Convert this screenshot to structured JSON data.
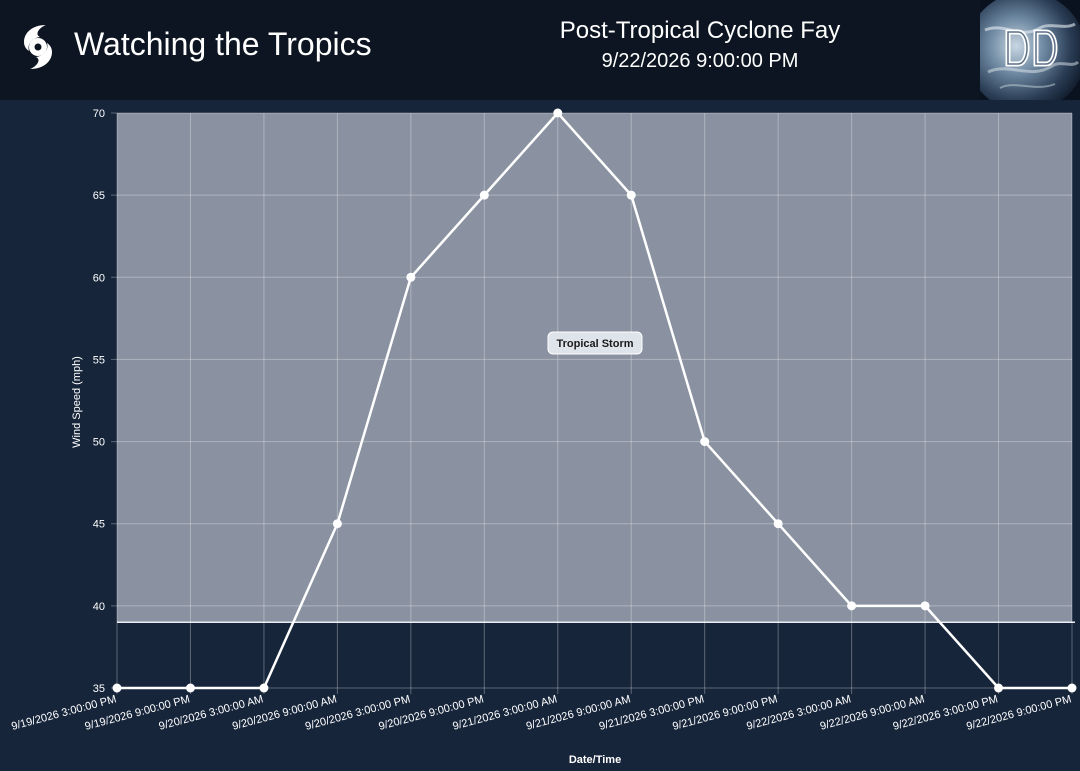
{
  "header": {
    "app_title": "Watching the Tropics",
    "storm_name": "Post-Tropical Cyclone Fay",
    "storm_time": "9/22/2026 9:00:00 PM",
    "logo_icon": "dd-globe-logo-icon",
    "brand_icon": "hurricane-icon"
  },
  "colors": {
    "page_background": "#17253b",
    "header_background": "#0c1521",
    "band_fill": "#8a92a1",
    "line": "#ffffff"
  },
  "chart_data": {
    "type": "line",
    "xlabel": "Date/Time",
    "ylabel": "Wind Speed (mph)",
    "ylim": [
      35,
      70
    ],
    "yticks": [
      35,
      40,
      45,
      50,
      55,
      60,
      65,
      70
    ],
    "grid": true,
    "categories": [
      "9/19/2026 3:00:00 PM",
      "9/19/2026 9:00:00 PM",
      "9/20/2026 3:00:00 AM",
      "9/20/2026 9:00:00 AM",
      "9/20/2026 3:00:00 PM",
      "9/20/2026 9:00:00 PM",
      "9/21/2026 3:00:00 AM",
      "9/21/2026 9:00:00 AM",
      "9/21/2026 3:00:00 PM",
      "9/21/2026 9:00:00 PM",
      "9/22/2026 3:00:00 AM",
      "9/22/2026 9:00:00 AM",
      "9/22/2026 3:00:00 PM",
      "9/22/2026 9:00:00 PM"
    ],
    "series": [
      {
        "values": [
          35,
          35,
          35,
          45,
          60,
          65,
          70,
          65,
          50,
          45,
          40,
          40,
          35,
          35
        ]
      }
    ],
    "bands": [
      {
        "label": "Tropical Storm",
        "from": 39,
        "to": 70
      }
    ]
  }
}
